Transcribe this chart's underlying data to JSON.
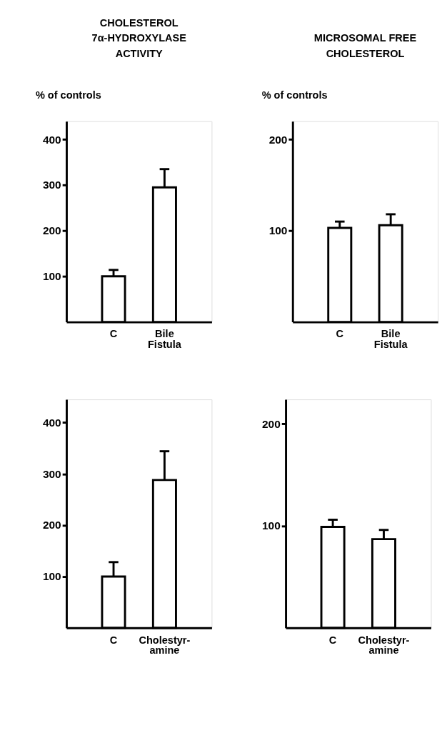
{
  "chart_data": [
    {
      "type": "bar",
      "title": "CHOLESTEROL\n7α-HYDROXYLASE\nACTIVITY",
      "ylabel": "% of controls",
      "categories": [
        "C",
        "Bile\nFistula"
      ],
      "values": [
        100,
        295
      ],
      "errors": [
        [
          100,
          114
        ],
        [
          295,
          335
        ]
      ],
      "color": "#ffffff",
      "ylim": [
        0,
        440
      ],
      "yticks": [
        100,
        200,
        300,
        400
      ],
      "grid": false
    },
    {
      "type": "bar",
      "title": "MICROSOMAL FREE\nCHOLESTEROL",
      "ylabel": "% of controls",
      "categories": [
        "C",
        "Bile\nFistula"
      ],
      "values": [
        103,
        106
      ],
      "errors": [
        [
          103,
          110
        ],
        [
          106,
          118
        ]
      ],
      "color": "#ffffff",
      "ylim": [
        0,
        220
      ],
      "yticks": [
        100,
        200
      ],
      "grid": false
    },
    {
      "type": "bar",
      "categories": [
        "C",
        "Cholestyr-\namine"
      ],
      "values": [
        100,
        288
      ],
      "errors": [
        [
          100,
          128
        ],
        [
          288,
          344
        ]
      ],
      "color": "#ffffff",
      "ylim": [
        0,
        445
      ],
      "yticks": [
        100,
        200,
        300,
        400
      ],
      "grid": false
    },
    {
      "type": "bar",
      "categories": [
        "C",
        "Cholestyr-\namine"
      ],
      "values": [
        99,
        87
      ],
      "errors": [
        [
          99,
          106
        ],
        [
          87,
          96
        ]
      ],
      "color": "#ffffff",
      "ylim": [
        0,
        224
      ],
      "yticks": [
        100,
        200
      ],
      "grid": false
    }
  ]
}
